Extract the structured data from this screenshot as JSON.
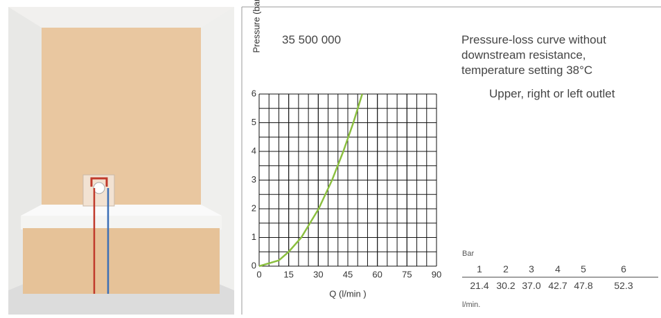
{
  "product_number": "35 500 000",
  "description": [
    "Pressure-loss curve without",
    "downstream resistance,",
    "temperature setting 38°C"
  ],
  "outlet": "Upper, right or left outlet",
  "chart_data": {
    "type": "line",
    "y_label": "Pressure (bar)",
    "x_label": "Q (l/min )",
    "x": [
      0,
      10,
      15,
      21.4,
      30.2,
      37.0,
      42.7,
      47.8,
      52.3
    ],
    "values": [
      0,
      0.2,
      0.5,
      1,
      2,
      3,
      4,
      5,
      6
    ],
    "color": "#8bbf3f",
    "xlim": [
      0,
      90
    ],
    "xticks": [
      0,
      15,
      30,
      45,
      60,
      75,
      90
    ],
    "ylim": [
      0,
      6
    ],
    "yticks": [
      0,
      1,
      2,
      3,
      4,
      5,
      6
    ],
    "grid": true,
    "xgrid_step": 5,
    "ygrid_step": 0.5
  },
  "table": {
    "unit_top": "Bar",
    "unit_bottom": "l/min.",
    "rows": [
      [
        "1",
        "2",
        "3",
        "4",
        "5",
        "6"
      ],
      [
        "21.4",
        "30.2",
        "37.0",
        "42.7",
        "47.8",
        "52.3"
      ]
    ]
  }
}
